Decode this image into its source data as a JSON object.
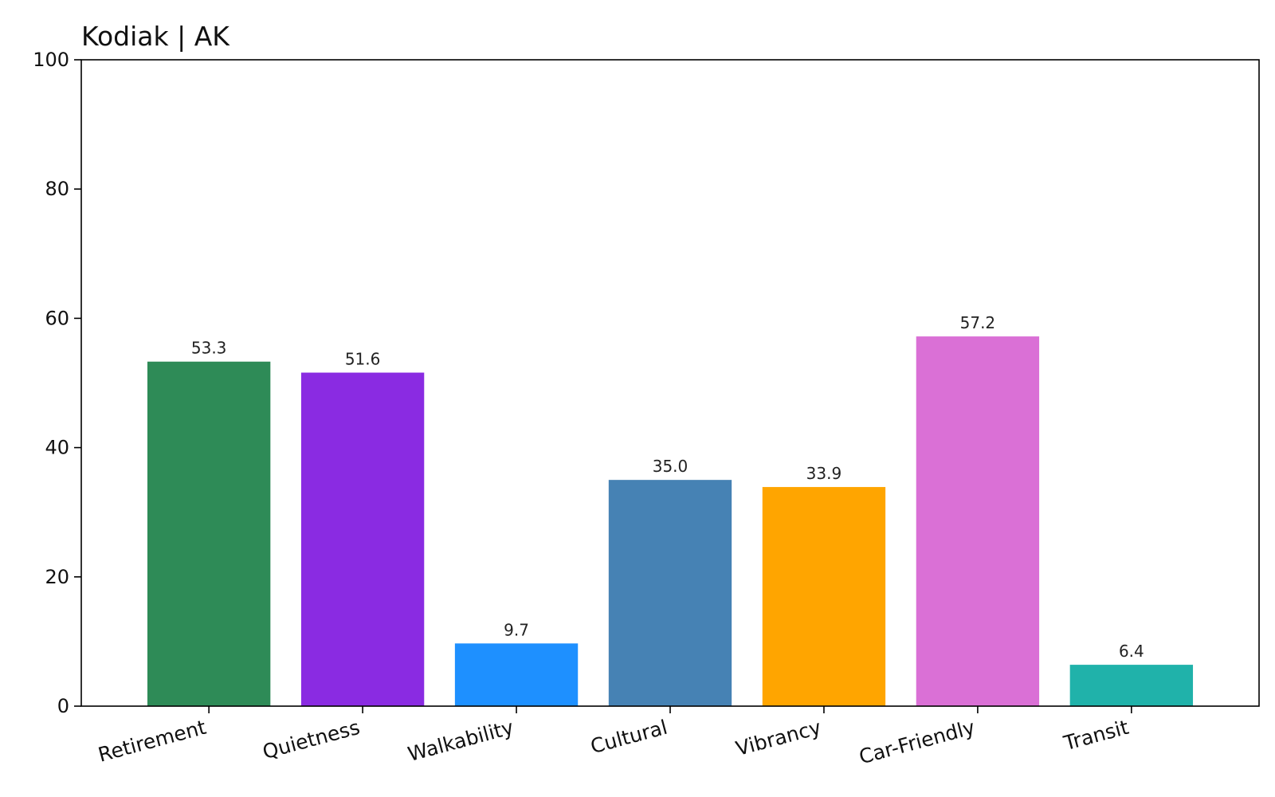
{
  "chart_data": {
    "type": "bar",
    "title": "Kodiak | AK",
    "xlabel": "",
    "ylabel": "",
    "categories": [
      "Retirement",
      "Quietness",
      "Walkability",
      "Cultural",
      "Vibrancy",
      "Car-Friendly",
      "Transit"
    ],
    "values": [
      53.3,
      51.6,
      9.7,
      35.0,
      33.9,
      57.2,
      6.4
    ],
    "value_labels": [
      "53.3",
      "51.6",
      "9.7",
      "35.0",
      "33.9",
      "57.2",
      "6.4"
    ],
    "colors": [
      "#2e8b57",
      "#8a2be2",
      "#1e90ff",
      "#4682b4",
      "#ffa500",
      "#da70d6",
      "#20b2aa"
    ],
    "ylim": [
      0,
      100
    ],
    "yticks": [
      0,
      20,
      40,
      60,
      80,
      100
    ],
    "grid": false,
    "legend": "none"
  }
}
